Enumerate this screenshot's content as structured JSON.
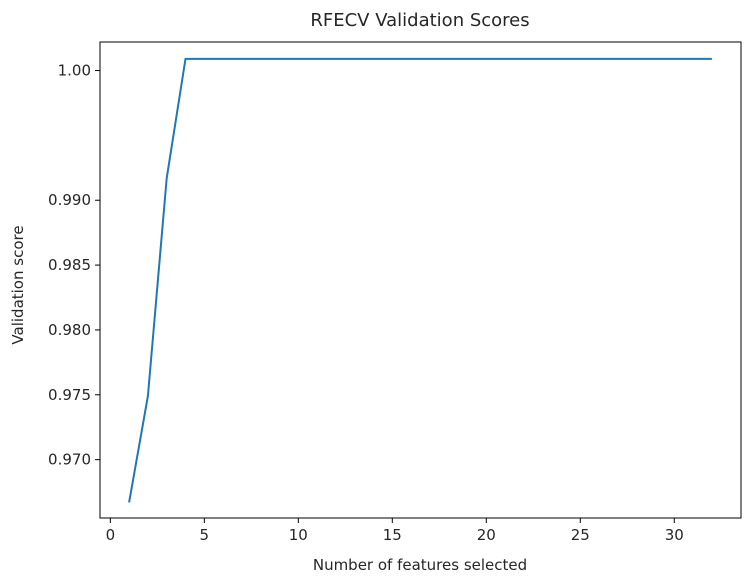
{
  "chart_data": {
    "type": "line",
    "title": "RFECV Validation Scores",
    "xlabel": "Number of features selected",
    "ylabel": "Validation score",
    "xlim": [
      -0.55,
      33.55
    ],
    "ylim": [
      0.9655,
      1.0022
    ],
    "xticks": [
      0,
      5,
      10,
      15,
      20,
      25,
      30
    ],
    "xtick_labels": [
      "0",
      "5",
      "10",
      "15",
      "20",
      "25",
      "30"
    ],
    "yticks": [
      0.97,
      0.975,
      0.98,
      0.985,
      0.99,
      1.0
    ],
    "ytick_labels": [
      "0.970",
      "0.975",
      "0.980",
      "0.985",
      "0.990",
      "1.00"
    ],
    "grid": false,
    "line_color": "#1f77b4",
    "series": [
      {
        "x": [
          1,
          2,
          3,
          4,
          5,
          6,
          7,
          8,
          9,
          10,
          11,
          12,
          13,
          14,
          15,
          16,
          17,
          18,
          19,
          20,
          21,
          22,
          23,
          24,
          25,
          26,
          27,
          28,
          29,
          30,
          31,
          32
        ],
        "values": [
          0.9667,
          0.9749,
          0.9917,
          1.0009,
          1.0009,
          1.0009,
          1.0009,
          1.0009,
          1.0009,
          1.0009,
          1.0009,
          1.0009,
          1.0009,
          1.0009,
          1.0009,
          1.0009,
          1.0009,
          1.0009,
          1.0009,
          1.0009,
          1.0009,
          1.0009,
          1.0009,
          1.0009,
          1.0009,
          1.0009,
          1.0009,
          1.0009,
          1.0009,
          1.0009,
          1.0009,
          1.0009
        ]
      }
    ]
  }
}
